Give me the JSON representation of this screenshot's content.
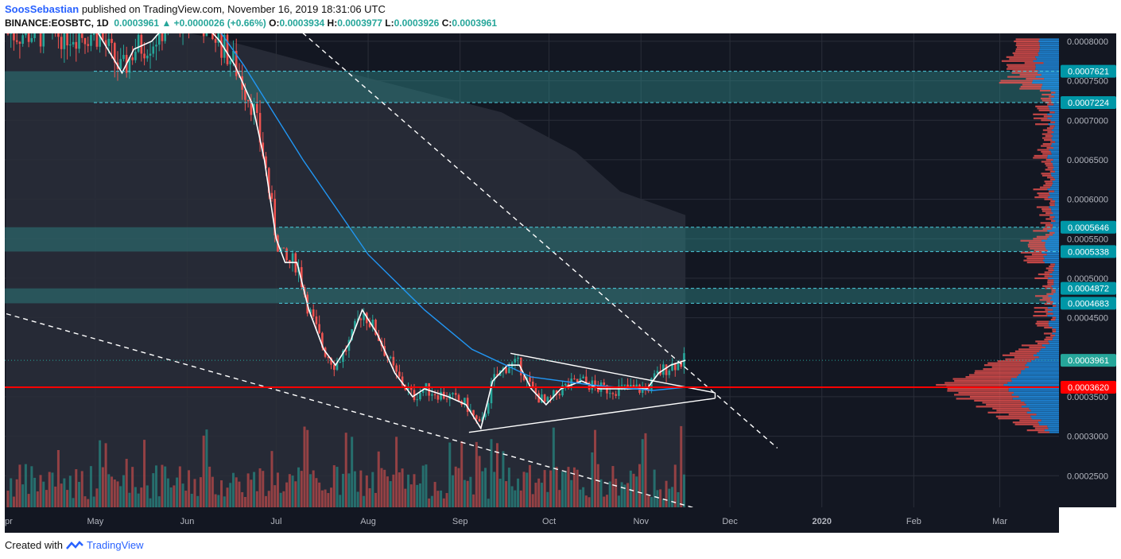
{
  "header": {
    "author": "SoosSebastian",
    "published_text": "published on TradingView.com, November 16, 2019 18:31:06 UTC",
    "symbol": "BINANCE:EOSBTC, 1D",
    "last_price": "0.0003961",
    "change": "+0.0000026 (+0.66%)",
    "open_label": "O:",
    "open": "0.0003934",
    "high_label": "H:",
    "high": "0.0003977",
    "low_label": "L:",
    "low": "0.0003926",
    "close_label": "C:",
    "close": "0.0003961"
  },
  "footer": {
    "created_with": "Created with",
    "brand": "TradingView"
  },
  "chart_data": {
    "type": "candlestick",
    "symbol": "BINANCE:EOSBTC",
    "interval": "1D",
    "x_labels": [
      "pr",
      "May",
      "Jun",
      "Jul",
      "Aug",
      "Sep",
      "Oct",
      "Nov",
      "Dec",
      "2020",
      "Feb",
      "Mar"
    ],
    "y_ticks": [
      "0.0008000",
      "0.0007500",
      "0.0007000",
      "0.0006500",
      "0.0006000",
      "0.0005500",
      "0.0005000",
      "0.0004500",
      "0.0003500",
      "0.0003000",
      "0.0002500"
    ],
    "ylim": [
      0.00021,
      0.00081
    ],
    "price_levels": [
      {
        "label": "0.0007621",
        "value": 0.0007621,
        "style": "cyan-dashed"
      },
      {
        "label": "0.0007224",
        "value": 0.0007224,
        "style": "cyan-dashed"
      },
      {
        "label": "0.0005646",
        "value": 0.0005646,
        "style": "cyan-dashed"
      },
      {
        "label": "0.0005338",
        "value": 0.0005338,
        "style": "cyan-dashed"
      },
      {
        "label": "0.0004872",
        "value": 0.0004872,
        "style": "cyan-dashed"
      },
      {
        "label": "0.0004683",
        "value": 0.0004683,
        "style": "cyan-dashed"
      },
      {
        "label": "0.0003961",
        "value": 0.0003961,
        "style": "last-price"
      },
      {
        "label": "0.0003620",
        "value": 0.000362,
        "style": "red-solid"
      }
    ],
    "zones": [
      [
        0.0007224,
        0.0007621
      ],
      [
        0.0005338,
        0.0005646
      ],
      [
        0.0004683,
        0.0004872
      ]
    ],
    "close_path": [
      [
        "2019-05-02",
        0.00081
      ],
      [
        "2019-05-10",
        0.00076
      ],
      [
        "2019-05-14",
        0.00079
      ],
      [
        "2019-05-20",
        0.0008
      ],
      [
        "2019-05-27",
        0.00083
      ],
      [
        "2019-06-05",
        0.00083
      ],
      [
        "2019-06-12",
        0.0008
      ],
      [
        "2019-06-17",
        0.00077
      ],
      [
        "2019-06-23",
        0.00072
      ],
      [
        "2019-06-27",
        0.00065
      ],
      [
        "2019-07-01",
        0.00055
      ],
      [
        "2019-07-04",
        0.00052
      ],
      [
        "2019-07-08",
        0.00052
      ],
      [
        "2019-07-12",
        0.00046
      ],
      [
        "2019-07-17",
        0.00041
      ],
      [
        "2019-07-21",
        0.00039
      ],
      [
        "2019-07-26",
        0.00042
      ],
      [
        "2019-07-30",
        0.00046
      ],
      [
        "2019-08-04",
        0.00043
      ],
      [
        "2019-08-10",
        0.00038
      ],
      [
        "2019-08-16",
        0.00035
      ],
      [
        "2019-08-20",
        0.00036
      ],
      [
        "2019-08-28",
        0.00035
      ],
      [
        "2019-09-03",
        0.00034
      ],
      [
        "2019-09-08",
        0.00031
      ],
      [
        "2019-09-12",
        0.00037
      ],
      [
        "2019-09-17",
        0.00039
      ],
      [
        "2019-09-21",
        0.00039
      ],
      [
        "2019-09-25",
        0.00036
      ],
      [
        "2019-09-30",
        0.00034
      ],
      [
        "2019-10-05",
        0.00036
      ],
      [
        "2019-10-12",
        0.00037
      ],
      [
        "2019-10-18",
        0.00036
      ],
      [
        "2019-10-24",
        0.00036
      ],
      [
        "2019-10-30",
        0.00036
      ],
      [
        "2019-11-03",
        0.00036
      ],
      [
        "2019-11-07",
        0.00038
      ],
      [
        "2019-11-11",
        0.00039
      ],
      [
        "2019-11-16",
        0.0003961
      ]
    ],
    "colors": {
      "up": "#26a69a",
      "down": "#ef5350",
      "background": "#131722",
      "grid": "#2a2e39",
      "zone": "#2f8a8a",
      "level": "#4dd0e1",
      "support": "#ff0000",
      "axis_text": "#b2b5be"
    }
  }
}
